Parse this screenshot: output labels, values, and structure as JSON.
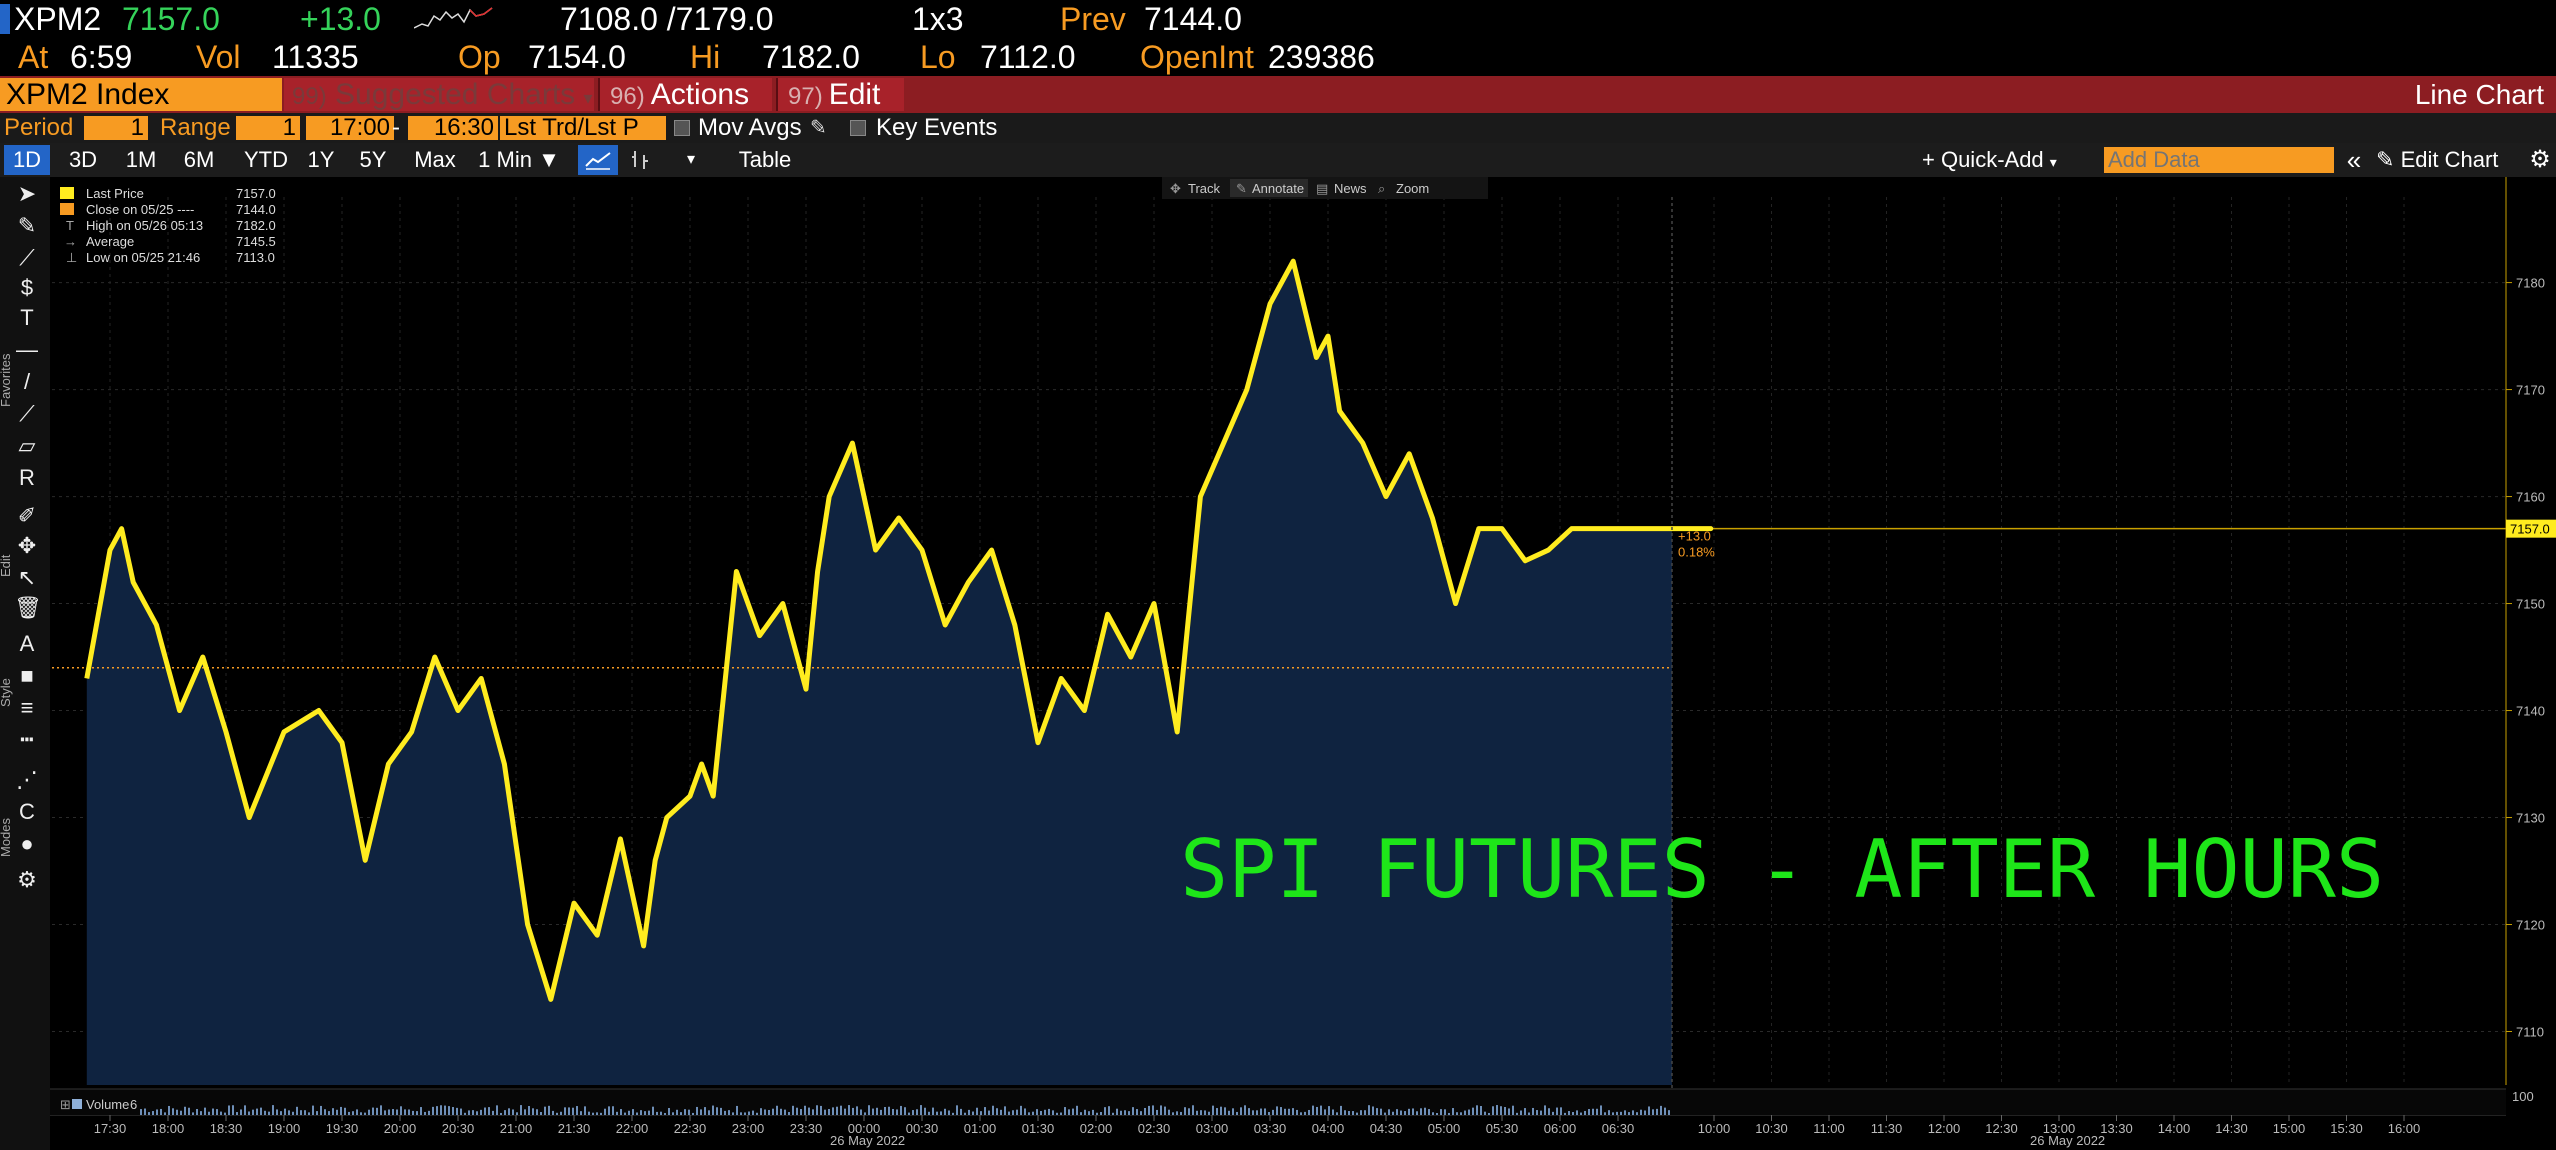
{
  "quote": {
    "ticker": "XPM2",
    "last": "7157.0",
    "change": "+13.0",
    "bid_ask": "7108.0 /7179.0",
    "size": "1x3",
    "prev_label": "Prev",
    "prev": "7144.0",
    "at_label": "At",
    "at": "6:59",
    "vol_label": "Vol",
    "vol": "11335",
    "op_label": "Op",
    "op": "7154.0",
    "hi_label": "Hi",
    "hi": "7182.0",
    "lo_label": "Lo",
    "lo": "7112.0",
    "oi_label": "OpenInt",
    "oi": "239386"
  },
  "redbar": {
    "security": "XPM2 Index",
    "suggested_num": "99)",
    "suggested": "Suggested Charts",
    "actions_num": "96)",
    "actions": "Actions",
    "edit_num": "97)",
    "edit": "Edit",
    "chart_type": "Line Chart"
  },
  "settings": {
    "period_label": "Period",
    "period": "1",
    "range_label": "Range",
    "range": "1",
    "start": "17:00",
    "dash": "-",
    "end": "16:30",
    "trd": "Lst Trd/Lst P",
    "mov_avgs": "Mov Avgs",
    "key_events": "Key Events"
  },
  "toolbar": {
    "ranges": [
      "1D",
      "3D",
      "1M",
      "6M",
      "YTD",
      "1Y",
      "5Y",
      "Max"
    ],
    "interval": "1 Min ▼",
    "table": "Table",
    "quick_add": "+ Quick-Add",
    "add_data_placeholder": "Add Data",
    "edit_chart": "Edit Chart"
  },
  "chart_overlay": {
    "track": "Track",
    "annotate": "Annotate",
    "news": "News",
    "zoom": "Zoom"
  },
  "side_labels": [
    "Favorites",
    "Edit",
    "Style",
    "Modes"
  ],
  "legend": [
    {
      "label": "Last Price",
      "value": "7157.0",
      "color": "#ffec1f"
    },
    {
      "label": "Close on 05/25 ----",
      "value": "7144.0",
      "color": "#f79b22"
    },
    {
      "label": "High on 05/26 05:13",
      "value": "7182.0",
      "color": "#cccccc"
    },
    {
      "label": "Average",
      "value": "7145.5",
      "color": "#cccccc"
    },
    {
      "label": "Low on 05/25 21:46",
      "value": "7113.0",
      "color": "#cccccc"
    }
  ],
  "colors": {
    "accent_amber": "#f79b22",
    "price_line": "#ffec1f",
    "price_fill": "#0f2340",
    "up_green": "#35d35a",
    "header_red": "#8c1d22",
    "watermark": "#1ee619"
  },
  "chart_data": {
    "type": "area",
    "title": "",
    "watermark": "SPI FUTURES - AFTER HOURS",
    "ylim": [
      7105,
      7188
    ],
    "yticks": [
      7110,
      7120,
      7130,
      7140,
      7150,
      7160,
      7170,
      7180
    ],
    "ytick_labels": [
      "7110",
      "7120",
      "7130",
      "7140",
      "7150",
      "7160",
      "7170",
      "7180"
    ],
    "prev_close": 7144.0,
    "last_tag": "7157.0",
    "change_tag": "+13.0",
    "change_pct_tag": "0.18%",
    "xticks": [
      "17:30",
      "18:00",
      "18:30",
      "19:00",
      "19:30",
      "20:00",
      "20:30",
      "21:00",
      "21:30",
      "22:00",
      "22:30",
      "23:00",
      "23:30",
      "00:00",
      "00:30",
      "01:00",
      "01:30",
      "02:00",
      "02:30",
      "03:00",
      "03:30",
      "04:00",
      "04:30",
      "05:00",
      "05:30",
      "06:00",
      "06:30",
      "10:00",
      "10:30",
      "11:00",
      "11:30",
      "12:00",
      "12:30",
      "13:00",
      "13:30",
      "14:00",
      "14:30",
      "15:00",
      "15:30",
      "16:00"
    ],
    "date_labels": [
      "26 May 2022",
      "26 May 2022"
    ],
    "volume_label": "Volume",
    "volume_value": "6",
    "volume_axis": "100",
    "x_hours": [
      -0.2,
      0.0,
      0.1,
      0.2,
      0.4,
      0.6,
      0.8,
      1.0,
      1.2,
      1.5,
      1.8,
      2.0,
      2.2,
      2.4,
      2.6,
      2.8,
      3.0,
      3.2,
      3.4,
      3.6,
      3.8,
      4.0,
      4.2,
      4.4,
      4.6,
      4.7,
      4.8,
      5.0,
      5.1,
      5.2,
      5.4,
      5.6,
      5.8,
      6.0,
      6.1,
      6.2,
      6.4,
      6.6,
      6.8,
      7.0,
      7.2,
      7.4,
      7.6,
      7.8,
      8.0,
      8.2,
      8.4,
      8.6,
      8.8,
      9.0,
      9.2,
      9.4,
      9.6,
      9.8,
      10.0,
      10.2,
      10.4,
      10.5,
      10.6,
      10.8,
      11.0,
      11.2,
      11.4,
      11.6,
      11.8,
      12.0,
      12.2,
      12.4,
      12.6,
      12.8,
      13.0,
      13.2,
      13.4,
      13.6,
      13.8,
      13.99
    ],
    "prices": [
      7143,
      7155,
      7157,
      7152,
      7148,
      7140,
      7145,
      7138,
      7130,
      7138,
      7140,
      7137,
      7126,
      7135,
      7138,
      7145,
      7140,
      7143,
      7135,
      7120,
      7113,
      7122,
      7119,
      7128,
      7118,
      7126,
      7130,
      7132,
      7135,
      7132,
      7153,
      7147,
      7150,
      7142,
      7153,
      7160,
      7165,
      7155,
      7158,
      7155,
      7148,
      7152,
      7155,
      7148,
      7137,
      7143,
      7140,
      7149,
      7145,
      7150,
      7138,
      7160,
      7165,
      7170,
      7178,
      7182,
      7173,
      7175,
      7168,
      7165,
      7160,
      7164,
      7158,
      7150,
      7157,
      7157,
      7154,
      7155,
      7157,
      7157,
      7157,
      7157,
      7157,
      7157,
      7157,
      7157
    ]
  }
}
